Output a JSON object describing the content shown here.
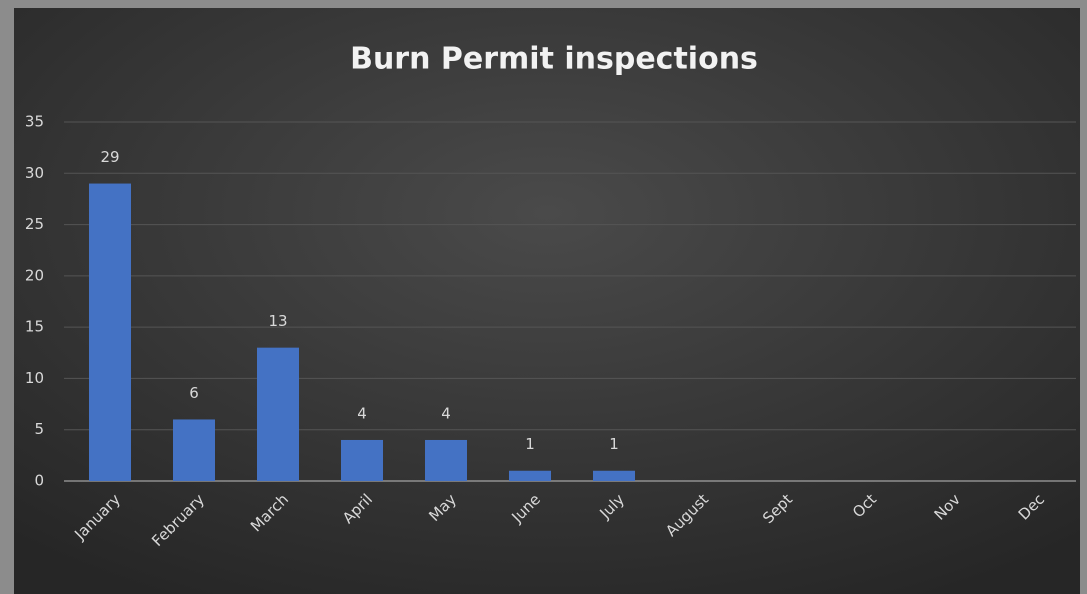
{
  "chart_data": {
    "type": "bar",
    "title": "Burn Permit inspections",
    "categories": [
      "January",
      "February",
      "March",
      "April",
      "May",
      "June",
      "July",
      "August",
      "Sept",
      "Oct",
      "Nov",
      "Dec"
    ],
    "values": [
      29,
      6,
      13,
      4,
      4,
      1,
      1,
      null,
      null,
      null,
      null,
      null
    ],
    "color": "#4472c4",
    "ylim": [
      0,
      35
    ],
    "yticks": [
      0,
      5,
      10,
      15,
      20,
      25,
      30,
      35
    ],
    "grid": true
  }
}
